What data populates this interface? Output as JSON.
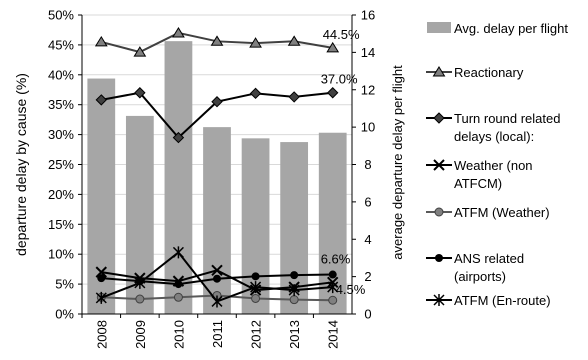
{
  "chart_data": {
    "type": "bar+line",
    "categories": [
      "2008",
      "2009",
      "2010",
      "2011",
      "2012",
      "2013",
      "2014"
    ],
    "left_axis": {
      "label": "departure delay by cause (%)",
      "ylim": [
        0,
        50
      ],
      "ticks": [
        "0%",
        "5%",
        "10%",
        "15%",
        "20%",
        "25%",
        "30%",
        "35%",
        "40%",
        "45%",
        "50%"
      ]
    },
    "right_axis": {
      "label": "average departure delay per flight",
      "ylim": [
        0,
        16
      ],
      "ticks": [
        "0",
        "2",
        "4",
        "6",
        "8",
        "10",
        "12",
        "14",
        "16"
      ]
    },
    "bars": {
      "name": "Avg. delay per flight",
      "axis": "right",
      "color": "#a6a6a6",
      "values": [
        12.6,
        10.6,
        14.6,
        10.0,
        9.4,
        9.2,
        9.7
      ]
    },
    "series": [
      {
        "name": "Reactionary",
        "marker": "triangle",
        "values": [
          45.5,
          43.8,
          47.0,
          45.6,
          45.3,
          45.6,
          44.5
        ]
      },
      {
        "name": "Turn round related delays (local):",
        "marker": "diamond",
        "values": [
          35.8,
          37.0,
          29.5,
          35.5,
          36.9,
          36.3,
          37.0
        ]
      },
      {
        "name": "Weather (non ATFCM)",
        "marker": "x",
        "values": [
          7.0,
          6.0,
          5.5,
          7.3,
          4.0,
          4.5,
          5.3
        ]
      },
      {
        "name": "ATFM (Weather)",
        "marker": "circle-gray",
        "values": [
          2.8,
          2.5,
          2.8,
          3.1,
          2.6,
          2.4,
          2.3
        ]
      },
      {
        "name": "ANS related (airports)",
        "marker": "circle-black",
        "values": [
          6.0,
          5.5,
          5.0,
          5.9,
          6.3,
          6.5,
          6.6
        ]
      },
      {
        "name": "ATFM (En-route)",
        "marker": "star",
        "values": [
          2.7,
          5.2,
          10.3,
          2.1,
          4.5,
          4.0,
          4.5
        ]
      }
    ],
    "annotations": [
      "44.5%",
      "37.0%",
      "6.6%",
      "4.5%"
    ],
    "legend": [
      "Avg. delay per flight",
      "Reactionary",
      "Turn round related",
      "delays (local):",
      "Weather (non",
      "ATFCM)",
      "ATFM (Weather)",
      "ANS related",
      "(airports)",
      "ATFM (En-route)"
    ],
    "legend_position": "right",
    "grid": true
  }
}
